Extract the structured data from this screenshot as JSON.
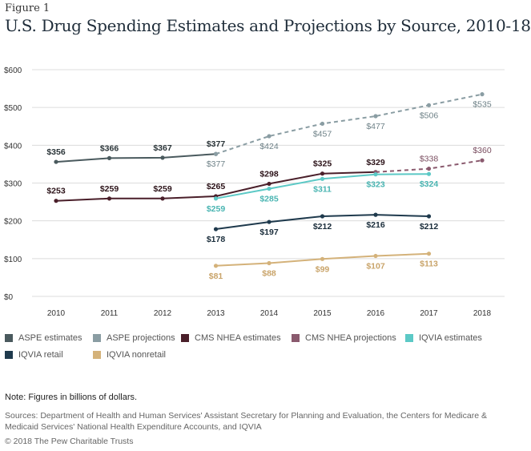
{
  "figure_label": "Figure 1",
  "title": "U.S. Drug Spending Estimates and Projections by Source, 2010-18",
  "chart_data": {
    "type": "line",
    "x": [
      2010,
      2011,
      2012,
      2013,
      2014,
      2015,
      2016,
      2017,
      2018
    ],
    "ylim": [
      0,
      600
    ],
    "y_ticks": [
      "$0",
      "$100",
      "$200",
      "$300",
      "$400",
      "$500",
      "$600"
    ],
    "y_tick_values": [
      0,
      100,
      200,
      300,
      400,
      500,
      600
    ],
    "x_tick_labels": [
      "2010",
      "2011",
      "2012",
      "2013",
      "2014",
      "2015",
      "2016",
      "2017",
      "2018"
    ],
    "grid": "horizontal",
    "legend_placement": "bottom",
    "series": [
      {
        "name": "ASPE estimates",
        "color": "#4a5a5e",
        "dash": false,
        "points": [
          [
            2010,
            356
          ],
          [
            2011,
            366
          ],
          [
            2012,
            367
          ],
          [
            2013,
            377
          ]
        ],
        "labels": [
          "$356",
          "$366",
          "$367",
          "$377"
        ],
        "label_pos": "above",
        "label_color": "#2a3438"
      },
      {
        "name": "ASPE projections",
        "color": "#8a9da3",
        "dash": true,
        "points": [
          [
            2013,
            377
          ],
          [
            2014,
            424
          ],
          [
            2015,
            457
          ],
          [
            2016,
            477
          ],
          [
            2017,
            506
          ],
          [
            2018,
            535
          ]
        ],
        "labels": [
          "$377",
          "$424",
          "$457",
          "$477",
          "$506",
          "$535"
        ],
        "label_pos": "below",
        "label_color": "#6f8288"
      },
      {
        "name": "CMS NHEA estimates",
        "color": "#4a1f2a",
        "dash": false,
        "points": [
          [
            2010,
            253
          ],
          [
            2011,
            259
          ],
          [
            2012,
            259
          ],
          [
            2013,
            265
          ],
          [
            2014,
            298
          ],
          [
            2015,
            325
          ],
          [
            2016,
            329
          ]
        ],
        "labels": [
          "$253",
          "$259",
          "$259",
          "$265",
          "$298",
          "$325",
          "$329"
        ],
        "label_pos": "above",
        "label_color": "#2b1218"
      },
      {
        "name": "CMS NHEA projections",
        "color": "#8a5a6e",
        "dash": true,
        "points": [
          [
            2016,
            329
          ],
          [
            2017,
            338
          ],
          [
            2018,
            360
          ]
        ],
        "labels": [
          "",
          "$338",
          "$360"
        ],
        "label_pos": "above",
        "label_color": "#7a4e60"
      },
      {
        "name": "IQVIA estimates",
        "color": "#5cc9c6",
        "dash": false,
        "points": [
          [
            2013,
            259
          ],
          [
            2014,
            285
          ],
          [
            2015,
            311
          ],
          [
            2016,
            323
          ],
          [
            2017,
            324
          ]
        ],
        "labels": [
          "$259",
          "$285",
          "$311",
          "$323",
          "$324"
        ],
        "label_pos": "below",
        "label_color": "#4ab5b2"
      },
      {
        "name": "IQVIA retail",
        "color": "#1f3a4d",
        "dash": false,
        "points": [
          [
            2013,
            178
          ],
          [
            2014,
            197
          ],
          [
            2015,
            212
          ],
          [
            2016,
            216
          ],
          [
            2017,
            212
          ]
        ],
        "labels": [
          "$178",
          "$197",
          "$212",
          "$216",
          "$212"
        ],
        "label_pos": "below",
        "label_color": "#1a2d3b"
      },
      {
        "name": "IQVIA nonretail",
        "color": "#d4b27a",
        "dash": false,
        "points": [
          [
            2013,
            81
          ],
          [
            2014,
            88
          ],
          [
            2015,
            99
          ],
          [
            2016,
            107
          ],
          [
            2017,
            113
          ]
        ],
        "labels": [
          "$81",
          "$88",
          "$99",
          "$107",
          "$113"
        ],
        "label_pos": "below",
        "label_color": "#c9a46a"
      }
    ]
  },
  "legend": [
    {
      "label": "ASPE estimates",
      "color": "#4a5a5e"
    },
    {
      "label": "ASPE projections",
      "color": "#8a9da3"
    },
    {
      "label": "CMS NHEA estimates",
      "color": "#4a1f2a"
    },
    {
      "label": "CMS NHEA projections",
      "color": "#8a5a6e"
    },
    {
      "label": "IQVIA estimates",
      "color": "#5cc9c6"
    },
    {
      "label": "IQVIA retail",
      "color": "#1f3a4d"
    },
    {
      "label": "IQVIA nonretail",
      "color": "#d4b27a"
    }
  ],
  "note": "Note: Figures in billions of dollars.",
  "sources": "Sources: Department of Health and Human Services' Assistant Secretary for Planning and Evaluation, the Centers for Medicare & Medicaid Services' National Health Expenditure Accounts, and IQVIA",
  "copyright": "© 2018 The Pew Charitable Trusts"
}
